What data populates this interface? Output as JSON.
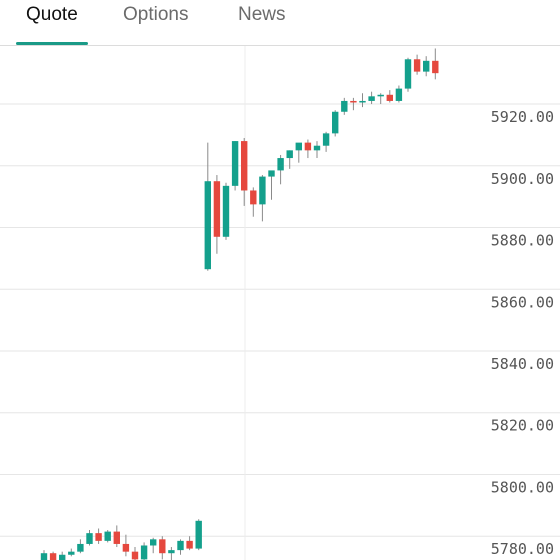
{
  "tabs": [
    {
      "label": "Quote",
      "active": true
    },
    {
      "label": "Options",
      "active": false
    },
    {
      "label": "News",
      "active": false
    }
  ],
  "colors": {
    "up": "#14a08c",
    "down": "#e5483e",
    "accent": "#1a9a87"
  },
  "chart_data": {
    "type": "candlestick",
    "y_tick_labels": [
      "5920.00",
      "5900.00",
      "5880.00",
      "5860.00",
      "5840.00",
      "5820.00",
      "5800.00",
      "5780.00"
    ],
    "y_ticks": [
      5920,
      5900,
      5880,
      5860,
      5840,
      5820,
      5800,
      5780
    ],
    "ylim": [
      5772.3,
      5938.8
    ],
    "grid": true,
    "candles": [
      [
        5771.0,
        5775.5,
        5770.0,
        5774.5
      ],
      [
        5774.5,
        5775.0,
        5770.0,
        5771.5
      ],
      [
        5771.5,
        5775.0,
        5771.0,
        5774.0
      ],
      [
        5774.0,
        5776.0,
        5773.5,
        5775.0
      ],
      [
        5775.0,
        5779.0,
        5774.5,
        5777.5
      ],
      [
        5777.5,
        5782.0,
        5777.0,
        5781.0
      ],
      [
        5781.0,
        5782.5,
        5777.5,
        5778.5
      ],
      [
        5778.5,
        5782.0,
        5778.0,
        5781.5
      ],
      [
        5781.5,
        5783.5,
        5776.5,
        5777.5
      ],
      [
        5777.5,
        5780.5,
        5773.5,
        5775.0
      ],
      [
        5775.0,
        5776.5,
        5768.5,
        5772.5
      ],
      [
        5772.5,
        5778.0,
        5770.5,
        5777.0
      ],
      [
        5777.0,
        5779.5,
        5774.5,
        5779.0
      ],
      [
        5779.0,
        5780.0,
        5772.5,
        5774.5
      ],
      [
        5774.5,
        5776.5,
        5771.5,
        5775.5
      ],
      [
        5775.5,
        5779.0,
        5774.0,
        5778.5
      ],
      [
        5778.5,
        5780.0,
        5775.5,
        5776.0
      ],
      [
        5776.0,
        5785.5,
        5775.5,
        5785.0
      ],
      [
        5866.5,
        5907.5,
        5866.0,
        5895.0
      ],
      [
        5895.0,
        5897.0,
        5871.5,
        5877.0
      ],
      [
        5877.0,
        5894.5,
        5876.0,
        5893.5
      ],
      [
        5893.5,
        5908.0,
        5892.0,
        5908.0
      ],
      [
        5908.0,
        5909.0,
        5887.0,
        5892.0
      ],
      [
        5892.0,
        5893.0,
        5883.5,
        5887.5
      ],
      [
        5887.5,
        5897.0,
        5882.0,
        5896.5
      ],
      [
        5896.5,
        5897.5,
        5889.0,
        5898.5
      ],
      [
        5898.5,
        5903.5,
        5894.0,
        5902.5
      ],
      [
        5902.5,
        5905.0,
        5899.0,
        5905.0
      ],
      [
        5905.0,
        5907.0,
        5901.0,
        5907.5
      ],
      [
        5907.5,
        5908.5,
        5902.5,
        5905.0
      ],
      [
        5905.0,
        5908.0,
        5902.5,
        5906.5
      ],
      [
        5906.5,
        5911.0,
        5904.5,
        5910.5
      ],
      [
        5910.5,
        5918.0,
        5909.5,
        5917.5
      ],
      [
        5917.5,
        5922.0,
        5916.5,
        5921.0
      ],
      [
        5921.0,
        5922.0,
        5918.0,
        5920.5
      ],
      [
        5920.5,
        5923.5,
        5919.0,
        5921.0
      ],
      [
        5921.0,
        5924.0,
        5920.0,
        5922.5
      ],
      [
        5922.5,
        5923.5,
        5920.0,
        5923.0
      ],
      [
        5923.0,
        5924.5,
        5920.5,
        5921.0
      ],
      [
        5921.0,
        5926.0,
        5920.5,
        5925.0
      ],
      [
        5925.0,
        5935.0,
        5924.0,
        5934.5
      ],
      [
        5934.5,
        5936.0,
        5929.5,
        5930.5
      ],
      [
        5930.5,
        5935.5,
        5929.0,
        5934.0
      ],
      [
        5934.0,
        5938.0,
        5928.0,
        5930.0
      ]
    ]
  }
}
